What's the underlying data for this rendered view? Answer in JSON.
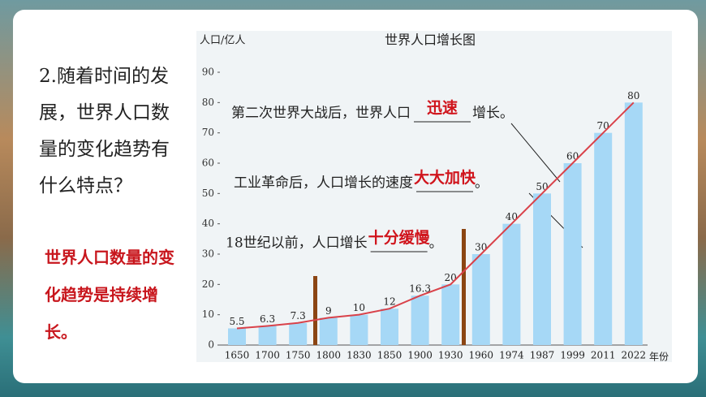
{
  "slide": {
    "question": "2.随着时间的发展，世界人口数量的变化趋势有什么特点？",
    "answer": "世界人口数量的变化趋势是持续增长。"
  },
  "chart_data": {
    "type": "bar",
    "title": "世界人口增长图",
    "y_label": "人口/亿人",
    "x_label": "年份",
    "categories": [
      "1650",
      "1700",
      "1750",
      "1800",
      "1830",
      "1850",
      "1900",
      "1930",
      "1960",
      "1974",
      "1987",
      "1999",
      "2011",
      "2022"
    ],
    "values": [
      5.5,
      6.3,
      7.3,
      9,
      10,
      12,
      16.3,
      20,
      30,
      40,
      50,
      60,
      70,
      80
    ],
    "color": "#a6d8f6",
    "trend_color": "#d9424a",
    "ylim": [
      0,
      90
    ],
    "yticks": [
      0,
      10,
      20,
      30,
      40,
      50,
      60,
      70,
      80,
      90
    ],
    "annotations": [
      {
        "before": "第二次世界大战后，世界人口",
        "answer": "迅速",
        "after": "增长。"
      },
      {
        "before": "工业革命后，人口增长的速度",
        "answer": "大大加快",
        "after": "。"
      },
      {
        "before": "18世纪以前，人口增长",
        "answer": "十分缓慢",
        "after": "。"
      }
    ]
  }
}
